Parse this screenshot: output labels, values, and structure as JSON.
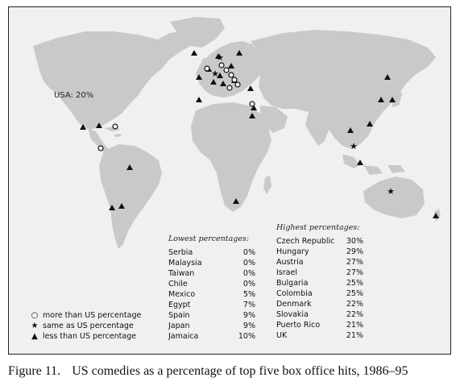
{
  "map_label": "USA: 20%",
  "legend": [
    {
      "symbol": "circle-icon",
      "glyph": "○",
      "label": "more than US percentage"
    },
    {
      "symbol": "star-icon",
      "glyph": "★",
      "label": "same as US percentage"
    },
    {
      "symbol": "triangle-icon",
      "glyph": "▲",
      "label": "less than US percentage"
    }
  ],
  "lowest": {
    "heading": "Lowest percentages:",
    "rows": [
      {
        "country": "Serbia",
        "value": "0%"
      },
      {
        "country": "Malaysia",
        "value": "0%"
      },
      {
        "country": "Taiwan",
        "value": "0%"
      },
      {
        "country": "Chile",
        "value": "0%"
      },
      {
        "country": "Mexico",
        "value": "5%"
      },
      {
        "country": "Egypt",
        "value": "7%"
      },
      {
        "country": "Spain",
        "value": "9%"
      },
      {
        "country": "Japan",
        "value": "9%"
      },
      {
        "country": "Jamaica",
        "value": "10%"
      }
    ]
  },
  "highest": {
    "heading": "Highest percentages:",
    "rows": [
      {
        "country": "Czech Republic",
        "value": "30%"
      },
      {
        "country": "Hungary",
        "value": "29%"
      },
      {
        "country": "Austria",
        "value": "27%"
      },
      {
        "country": "Israel",
        "value": "27%"
      },
      {
        "country": "Bulgaria",
        "value": "25%"
      },
      {
        "country": "Colombia",
        "value": "25%"
      },
      {
        "country": "Denmark",
        "value": "22%"
      },
      {
        "country": "Slovakia",
        "value": "22%"
      },
      {
        "country": "Puerto Rico",
        "value": "21%"
      },
      {
        "country": "UK",
        "value": "21%"
      }
    ]
  },
  "caption": {
    "number": "Figure 11.",
    "text": "US comedies as a percentage of top five box office hits, 1986–95"
  },
  "colors": {
    "land": "#c9c9c9",
    "sea": "#f0f0f0",
    "marker": "#111111"
  }
}
